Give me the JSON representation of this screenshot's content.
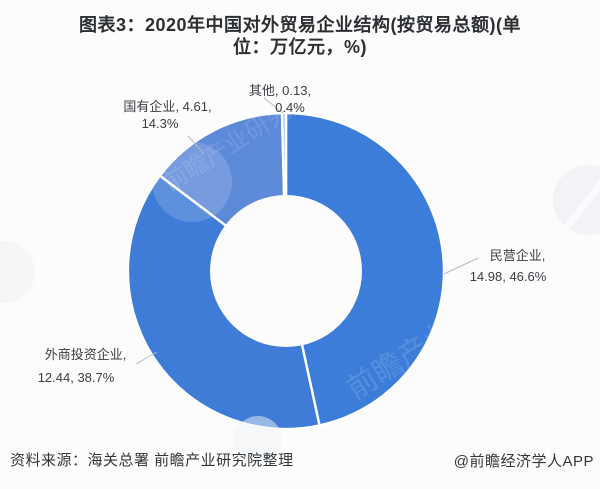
{
  "title": {
    "line1": "图表3：2020年中国对外贸易企业结构(按贸易总额)(单",
    "line2": "位：万亿元，%)"
  },
  "chart_data": {
    "type": "pie",
    "subtype": "donut",
    "title": "图表3：2020年中国对外贸易企业结构(按贸易总额)(单位：万亿元，%)",
    "unit": "万亿元",
    "order": "clockwise-from-top",
    "slices": [
      {
        "label": "民营企业",
        "value": 14.98,
        "percent": 46.6,
        "color": "#3c7dd9"
      },
      {
        "label": "外商投资企业",
        "value": 12.44,
        "percent": 38.7,
        "color": "#3e7cd7"
      },
      {
        "label": "国有企业",
        "value": 4.61,
        "percent": 14.3,
        "color": "#5c8ad9"
      },
      {
        "label": "其他",
        "value": 0.13,
        "percent": 0.4,
        "color": "#a9c9ec"
      }
    ],
    "hole_color": "#fcfcfd",
    "gap_color": "#ffffff"
  },
  "labels": {
    "qita": {
      "line1": "其他, 0.13,",
      "line2": "0.4%"
    },
    "guoyou": {
      "line1": "国有企业, 4.61,",
      "line2": "14.3%"
    },
    "minying": {
      "line1": "民营企业,",
      "line2": "14.98, 46.6%"
    },
    "waishang": {
      "line1": "外商投资企业,",
      "line2": "12.44, 38.7%"
    }
  },
  "footer": {
    "source": "资料来源：海关总署 前瞻产业研究院整理",
    "attribution": "@前瞻经济学人APP"
  },
  "watermark": {
    "text": "前瞻产业研究院"
  }
}
